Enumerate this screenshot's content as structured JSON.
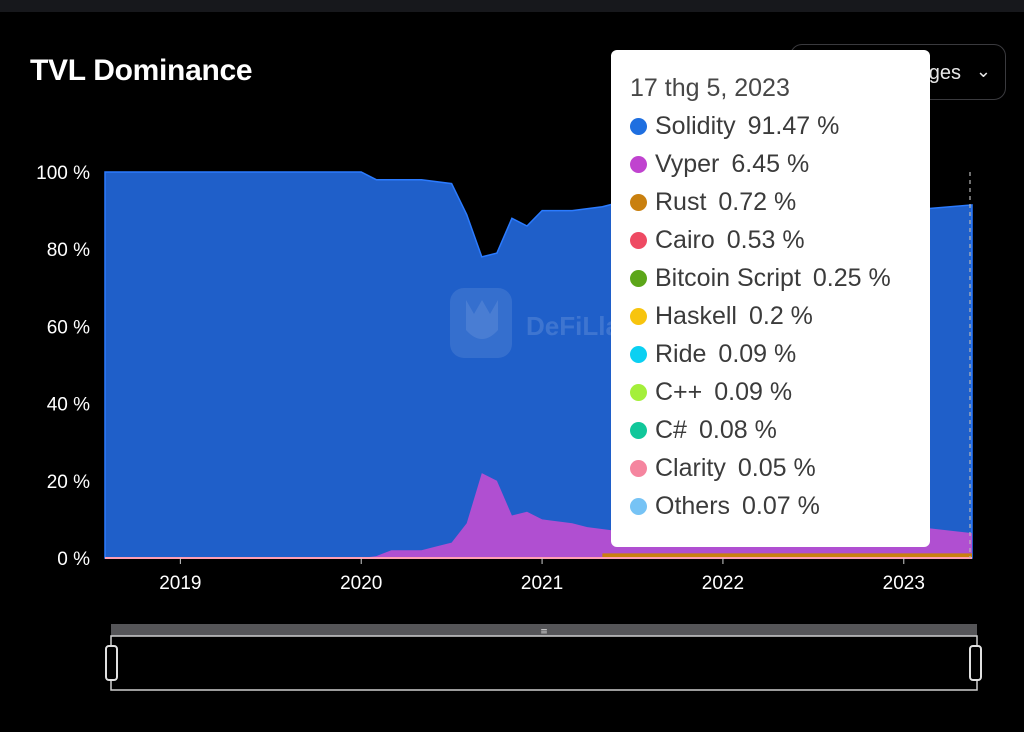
{
  "header": {
    "title": "TVL Dominance",
    "dropdown_label": "ges",
    "dropdown_chevron": "⌄"
  },
  "watermark": "DeFiLla",
  "colors": {
    "background": "#000000",
    "solidity": "#1f5fc9",
    "vyper": "#b04fd1",
    "rust": "#c9800f",
    "cairo": "#ee4a63",
    "bitcoin_script": "#5ca619",
    "haskell": "#f2c310",
    "ride": "#0bd0f2",
    "cpp": "#a4ef3a",
    "csharp": "#11c79a",
    "clarity": "#f5859f",
    "others": "#76c3f5"
  },
  "tooltip": {
    "date": "17 thg 5, 2023",
    "items": [
      {
        "name": "Solidity",
        "value": "91.47 %",
        "color": "#1f6fe0"
      },
      {
        "name": "Vyper",
        "value": "6.45 %",
        "color": "#c043cf"
      },
      {
        "name": "Rust",
        "value": "0.72 %",
        "color": "#c9800f"
      },
      {
        "name": "Cairo",
        "value": "0.53 %",
        "color": "#ee4a63"
      },
      {
        "name": "Bitcoin Script",
        "value": "0.25 %",
        "color": "#5ca619"
      },
      {
        "name": "Haskell",
        "value": "0.2 %",
        "color": "#f7c40e"
      },
      {
        "name": "Ride",
        "value": "0.09 %",
        "color": "#0bd0f2"
      },
      {
        "name": "C++",
        "value": "0.09 %",
        "color": "#a4ef3a"
      },
      {
        "name": "C#",
        "value": "0.08 %",
        "color": "#11c79a"
      },
      {
        "name": "Clarity",
        "value": "0.05 %",
        "color": "#f5859f"
      },
      {
        "name": "Others",
        "value": "0.07 %",
        "color": "#76c3f5"
      }
    ]
  },
  "chart_data": {
    "type": "area",
    "stacked": true,
    "title": "TVL Dominance",
    "xlabel": "",
    "ylabel": "",
    "ylim": [
      0,
      100
    ],
    "x_range": [
      "2018-08",
      "2023-05-17"
    ],
    "x_ticks": [
      "2019",
      "2020",
      "2021",
      "2022",
      "2023"
    ],
    "y_ticks": [
      "0 %",
      "20 %",
      "40 %",
      "60 %",
      "80 %",
      "100 %"
    ],
    "legend": "tooltip",
    "grid": false,
    "series": [
      {
        "name": "Vyper",
        "points": [
          [
            "2018-08",
            0
          ],
          [
            "2020-01",
            0
          ],
          [
            "2020-02",
            0.5
          ],
          [
            "2020-03",
            2
          ],
          [
            "2020-05",
            2
          ],
          [
            "2020-06",
            3
          ],
          [
            "2020-07",
            4
          ],
          [
            "2020-08",
            9
          ],
          [
            "2020-09",
            22
          ],
          [
            "2020-10",
            20
          ],
          [
            "2020-11",
            11
          ],
          [
            "2020-12",
            12
          ],
          [
            "2021-01",
            10
          ],
          [
            "2021-03",
            9
          ],
          [
            "2021-04",
            8
          ],
          [
            "2021-06",
            7
          ],
          [
            "2021-09",
            6
          ],
          [
            "2022-01",
            5
          ],
          [
            "2022-06",
            6
          ],
          [
            "2022-11",
            5
          ],
          [
            "2023-02",
            8
          ],
          [
            "2023-05-17",
            6.45
          ]
        ]
      },
      {
        "name": "Solidity",
        "points": [
          [
            "2018-08",
            100
          ],
          [
            "2020-01",
            100
          ],
          [
            "2020-02",
            98
          ],
          [
            "2020-05",
            98
          ],
          [
            "2020-07",
            97
          ],
          [
            "2020-08",
            89
          ],
          [
            "2020-09",
            78
          ],
          [
            "2020-10",
            79
          ],
          [
            "2020-11",
            88
          ],
          [
            "2020-12",
            86
          ],
          [
            "2021-01",
            90
          ],
          [
            "2021-03",
            90
          ],
          [
            "2021-05",
            91
          ],
          [
            "2021-06",
            92
          ],
          [
            "2023-01",
            90
          ],
          [
            "2023-05-17",
            91.47
          ]
        ]
      }
    ]
  }
}
